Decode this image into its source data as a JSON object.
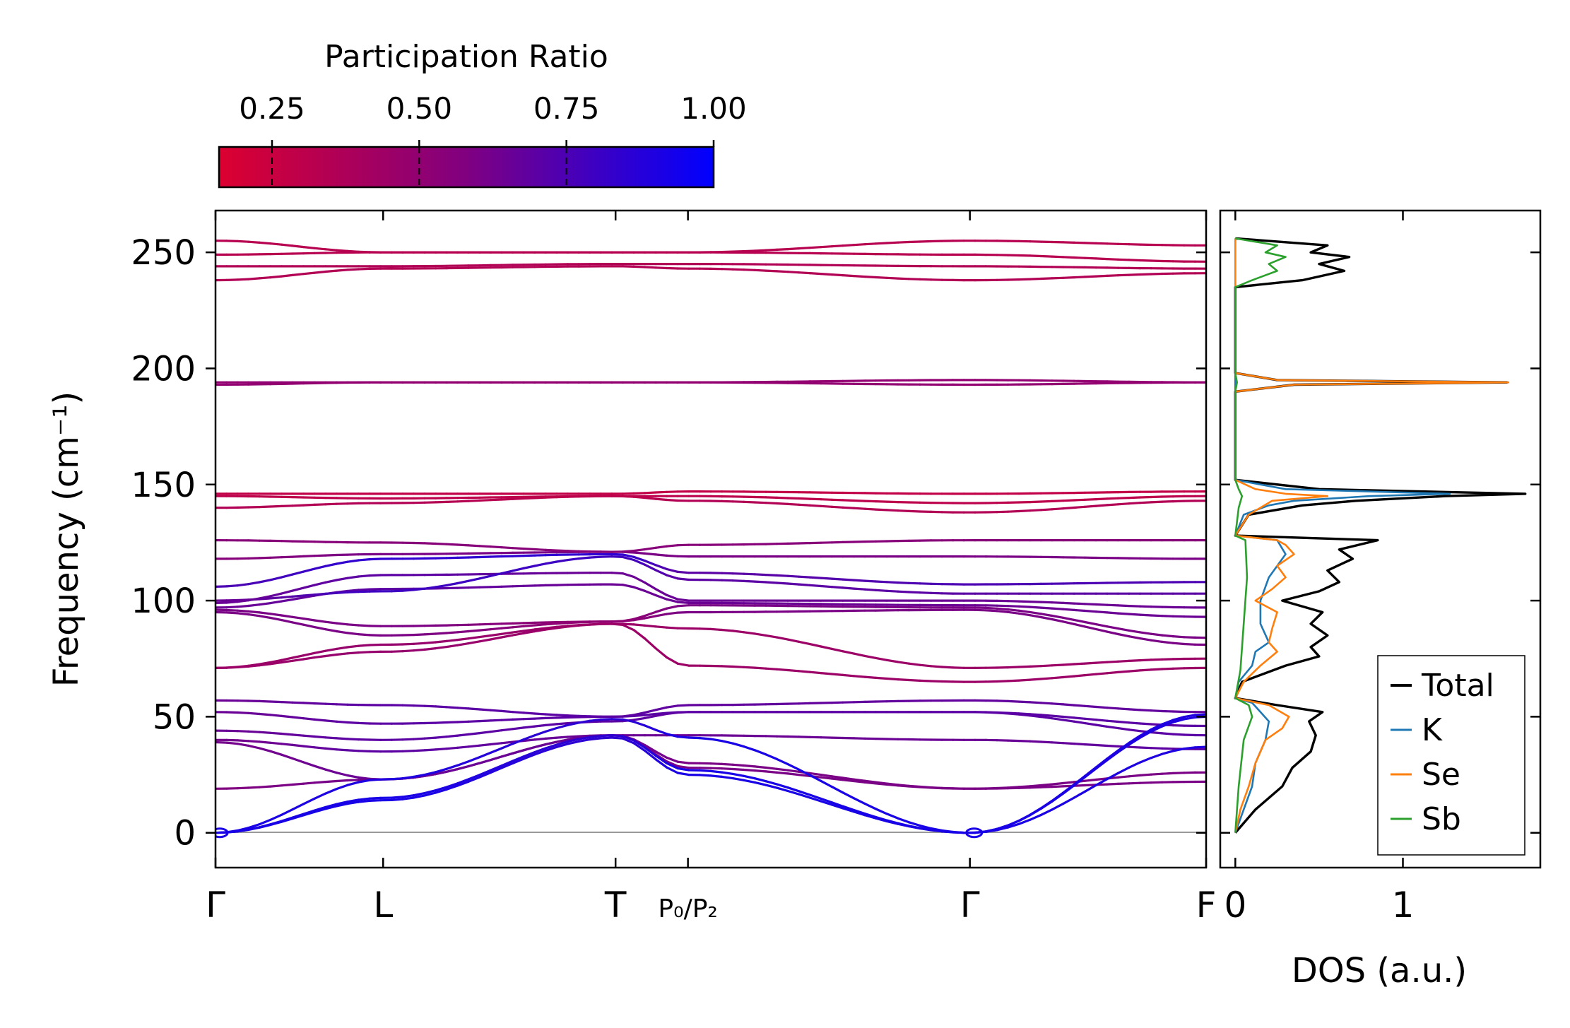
{
  "colorbar": {
    "title": "Participation Ratio",
    "ticks": [
      "0.25",
      "0.50",
      "0.75",
      "1.00"
    ],
    "tick_values": [
      0.25,
      0.5,
      0.75,
      1.0
    ],
    "range": [
      0.16,
      1.0
    ],
    "low_color": "#dc0030",
    "mid_color": "#800080",
    "high_color": "#0000ff"
  },
  "chart_data": [
    {
      "type": "line",
      "title": "",
      "xlabel": "",
      "ylabel": "Frequency (cm⁻¹)",
      "ylim": [
        -15,
        268
      ],
      "y_ticks": [
        0,
        50,
        100,
        150,
        200,
        250
      ],
      "x_range": [
        0,
        1.3
      ],
      "k_points": [
        {
          "label": "Γ",
          "x": 0.0
        },
        {
          "label": "L",
          "x": 0.22
        },
        {
          "label": "T",
          "x": 0.525
        },
        {
          "label": "P₀/P₂",
          "x": 0.62
        },
        {
          "label": "Γ",
          "x": 0.99
        },
        {
          "label": "F",
          "x": 1.3
        }
      ],
      "zero_line": 0,
      "bands": [
        {
          "y": [
            19,
            23,
            42,
            28,
            19,
            22
          ],
          "pr": [
            0.58,
            0.62,
            0.62,
            0.6,
            0.6,
            0.6
          ]
        },
        {
          "y": [
            39,
            23,
            42,
            30,
            19,
            26
          ],
          "pr": [
            0.62,
            0.65,
            0.65,
            0.6,
            0.6,
            0.6
          ]
        },
        {
          "y": [
            40,
            35,
            42,
            42,
            40,
            36
          ],
          "pr": [
            0.62,
            0.7,
            0.65,
            0.65,
            0.65,
            0.7
          ]
        },
        {
          "y": [
            44,
            40,
            48,
            52,
            52,
            42
          ],
          "pr": [
            0.65,
            0.7,
            0.7,
            0.68,
            0.7,
            0.7
          ]
        },
        {
          "y": [
            52,
            47,
            50,
            52,
            52,
            46
          ],
          "pr": [
            0.65,
            0.7,
            0.7,
            0.7,
            0.7,
            0.7
          ]
        },
        {
          "y": [
            57,
            55,
            50,
            55,
            57,
            52
          ],
          "pr": [
            0.65,
            0.7,
            0.7,
            0.68,
            0.68,
            0.68
          ]
        },
        {
          "y": [
            71,
            78,
            90,
            72,
            65,
            71
          ],
          "pr": [
            0.45,
            0.48,
            0.45,
            0.45,
            0.45,
            0.45
          ]
        },
        {
          "y": [
            71,
            81,
            90,
            88,
            71,
            75
          ],
          "pr": [
            0.45,
            0.48,
            0.45,
            0.45,
            0.45,
            0.45
          ]
        },
        {
          "y": [
            95,
            85,
            91,
            95,
            96,
            81
          ],
          "pr": [
            0.6,
            0.6,
            0.5,
            0.6,
            0.6,
            0.6
          ]
        },
        {
          "y": [
            96,
            89,
            91,
            98,
            97,
            84
          ],
          "pr": [
            0.6,
            0.6,
            0.5,
            0.6,
            0.6,
            0.6
          ]
        },
        {
          "y": [
            97,
            105,
            107,
            99,
            98,
            93
          ],
          "pr": [
            0.65,
            0.7,
            0.65,
            0.65,
            0.65,
            0.65
          ]
        },
        {
          "y": [
            99,
            111,
            112,
            100,
            100,
            97
          ],
          "pr": [
            0.65,
            0.7,
            0.65,
            0.65,
            0.65,
            0.65
          ]
        },
        {
          "y": [
            100,
            104,
            119,
            109,
            103,
            103
          ],
          "pr": [
            0.65,
            0.8,
            0.8,
            0.7,
            0.7,
            0.7
          ]
        },
        {
          "y": [
            106,
            118,
            120,
            112,
            107,
            108
          ],
          "pr": [
            0.75,
            0.85,
            0.85,
            0.7,
            0.75,
            0.75
          ]
        },
        {
          "y": [
            118,
            120,
            121,
            119,
            119,
            118
          ],
          "pr": [
            0.55,
            0.6,
            0.6,
            0.6,
            0.6,
            0.6
          ]
        },
        {
          "y": [
            126,
            125,
            121,
            124,
            126,
            126
          ],
          "pr": [
            0.55,
            0.55,
            0.55,
            0.55,
            0.55,
            0.55
          ]
        },
        {
          "y": [
            140,
            142,
            145,
            143,
            138,
            143
          ],
          "pr": [
            0.35,
            0.35,
            0.3,
            0.35,
            0.35,
            0.35
          ]
        },
        {
          "y": [
            145,
            144,
            145,
            145,
            142,
            145
          ],
          "pr": [
            0.3,
            0.3,
            0.3,
            0.3,
            0.3,
            0.3
          ]
        },
        {
          "y": [
            146,
            146,
            146,
            147,
            146,
            147
          ],
          "pr": [
            0.28,
            0.28,
            0.28,
            0.28,
            0.28,
            0.28
          ]
        },
        {
          "y": [
            193,
            194,
            194,
            194,
            193,
            194
          ],
          "pr": [
            0.5,
            0.5,
            0.5,
            0.5,
            0.5,
            0.5
          ]
        },
        {
          "y": [
            194,
            194,
            194,
            194,
            195,
            194
          ],
          "pr": [
            0.5,
            0.5,
            0.5,
            0.5,
            0.5,
            0.5
          ]
        },
        {
          "y": [
            238,
            243,
            244,
            243,
            238,
            241
          ],
          "pr": [
            0.35,
            0.35,
            0.35,
            0.35,
            0.35,
            0.35
          ]
        },
        {
          "y": [
            244,
            244,
            245,
            245,
            244,
            243
          ],
          "pr": [
            0.35,
            0.35,
            0.35,
            0.35,
            0.35,
            0.35
          ]
        },
        {
          "y": [
            249,
            250,
            250,
            250,
            249,
            246
          ],
          "pr": [
            0.33,
            0.33,
            0.33,
            0.33,
            0.33,
            0.33
          ]
        },
        {
          "y": [
            255,
            250,
            250,
            250,
            255,
            253
          ],
          "pr": [
            0.33,
            0.33,
            0.33,
            0.33,
            0.33,
            0.33
          ]
        }
      ],
      "acoustic": [
        {
          "y": [
            0,
            14,
            41,
            25,
            0,
            50
          ],
          "pr": [
            0.92,
            0.92,
            0.85,
            0.92,
            0.92,
            0.9
          ]
        },
        {
          "y": [
            0,
            15,
            42,
            27,
            0,
            51
          ],
          "pr": [
            0.92,
            0.92,
            0.85,
            0.92,
            0.92,
            0.9
          ]
        },
        {
          "y": [
            0,
            23,
            49,
            41,
            0,
            37
          ],
          "pr": [
            0.92,
            0.9,
            0.85,
            0.92,
            0.92,
            0.9
          ]
        }
      ]
    },
    {
      "type": "line",
      "title": "",
      "xlabel": "DOS (a.u.)",
      "ylabel": "",
      "xlim": [
        -0.09,
        1.82
      ],
      "ylim": [
        -15,
        268
      ],
      "x_ticks": [
        0,
        1
      ],
      "legend_position": "bottom-right",
      "series": [
        {
          "name": "Total",
          "color": "#000000",
          "y": [
            0,
            10,
            20,
            28,
            35,
            42,
            48,
            52,
            55,
            58,
            65,
            72,
            76,
            80,
            85,
            90,
            95,
            100,
            104,
            108,
            113,
            118,
            122,
            126,
            128,
            137,
            141,
            143,
            145,
            146,
            148,
            152,
            190,
            193,
            194,
            195,
            198,
            235,
            238,
            242,
            245,
            248,
            250,
            253,
            256
          ],
          "x": [
            0,
            0.12,
            0.28,
            0.34,
            0.45,
            0.48,
            0.44,
            0.52,
            0.25,
            0,
            0.04,
            0.3,
            0.5,
            0.45,
            0.55,
            0.45,
            0.52,
            0.28,
            0.5,
            0.62,
            0.55,
            0.7,
            0.62,
            0.85,
            0,
            0.08,
            0.4,
            0.72,
            1.25,
            1.73,
            0.5,
            0,
            0,
            0.35,
            1.62,
            0.25,
            0,
            0,
            0.4,
            0.65,
            0.5,
            0.68,
            0.45,
            0.55,
            0
          ]
        },
        {
          "name": "K",
          "color": "#1f77b4",
          "y": [
            0,
            10,
            20,
            30,
            40,
            48,
            52,
            56,
            58,
            65,
            72,
            78,
            82,
            90,
            100,
            110,
            120,
            126,
            128,
            137,
            141,
            143,
            145,
            146,
            148,
            152,
            235,
            256
          ],
          "x": [
            0,
            0.05,
            0.1,
            0.12,
            0.18,
            0.2,
            0.15,
            0.1,
            0,
            0.02,
            0.1,
            0.12,
            0.2,
            0.15,
            0.15,
            0.2,
            0.3,
            0.25,
            0,
            0.05,
            0.2,
            0.35,
            0.8,
            1.28,
            0.3,
            0,
            0,
            0
          ]
        },
        {
          "name": "Se",
          "color": "#ff7f0e",
          "y": [
            0,
            10,
            20,
            30,
            40,
            45,
            50,
            55,
            58,
            65,
            72,
            78,
            82,
            88,
            95,
            100,
            105,
            110,
            115,
            120,
            124,
            126,
            128,
            137,
            140,
            143,
            145,
            146,
            148,
            152,
            190,
            193,
            194,
            195,
            198,
            235,
            256
          ],
          "x": [
            0,
            0.03,
            0.08,
            0.12,
            0.18,
            0.28,
            0.32,
            0.2,
            0,
            0.05,
            0.15,
            0.25,
            0.2,
            0.22,
            0.25,
            0.12,
            0.22,
            0.3,
            0.25,
            0.35,
            0.3,
            0.25,
            0,
            0.08,
            0.15,
            0.22,
            0.55,
            0.3,
            0.12,
            0,
            0,
            0.35,
            1.63,
            0.25,
            0,
            0,
            0
          ]
        },
        {
          "name": "Sb",
          "color": "#2ca02c",
          "y": [
            0,
            20,
            40,
            50,
            55,
            58,
            70,
            90,
            110,
            126,
            128,
            140,
            145,
            148,
            152,
            190,
            194,
            198,
            235,
            238,
            242,
            245,
            248,
            250,
            253,
            256
          ],
          "x": [
            0,
            0.02,
            0.05,
            0.1,
            0.08,
            0,
            0.03,
            0.05,
            0.07,
            0.06,
            0,
            0.02,
            0.04,
            0.02,
            0,
            0,
            0.01,
            0,
            0,
            0.1,
            0.25,
            0.2,
            0.3,
            0.18,
            0.25,
            0
          ]
        }
      ]
    }
  ]
}
